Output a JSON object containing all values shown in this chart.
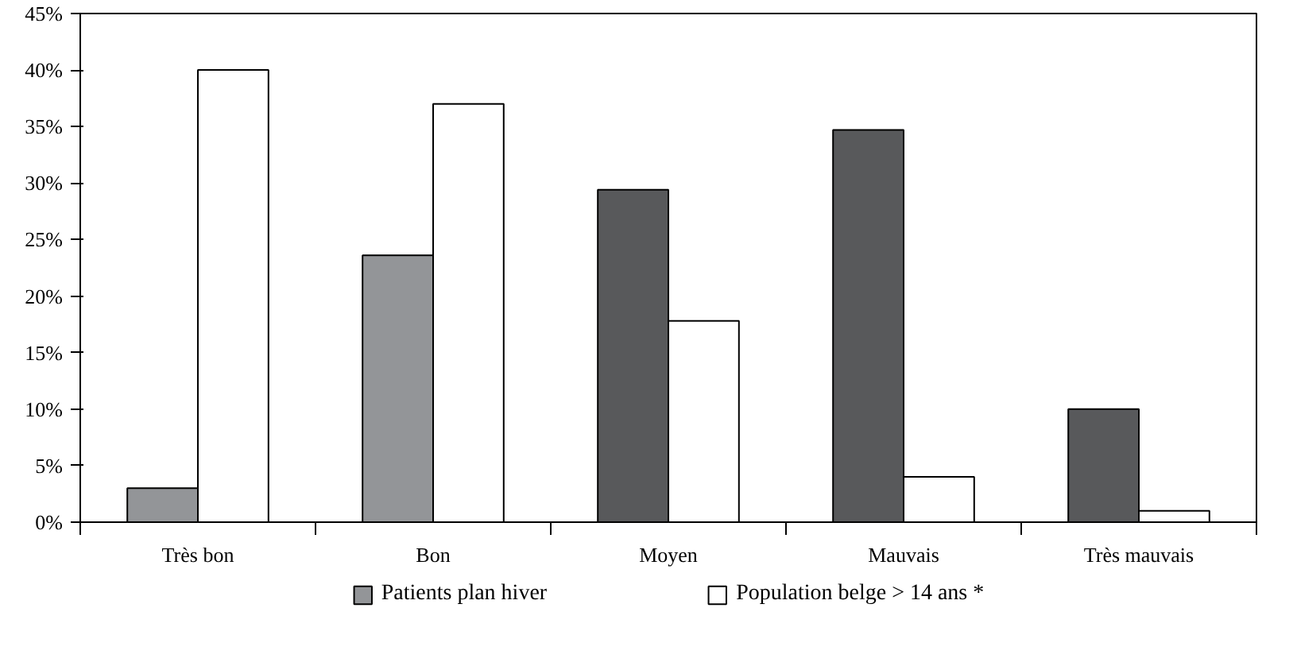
{
  "chart_data": {
    "type": "bar",
    "categories": [
      "Très bon",
      "Bon",
      "Moyen",
      "Mauvais",
      "Très mauvais"
    ],
    "series": [
      {
        "name": "Patients plan hiver",
        "color": "#939598",
        "colors": [
          "#939598",
          "#939598",
          "#58595b",
          "#58595b",
          "#58595b"
        ],
        "values": [
          3,
          23.6,
          29.4,
          34.7,
          10
        ]
      },
      {
        "name": "Population belge > 14 ans *",
        "color": "#ffffff",
        "values": [
          40,
          37,
          17.8,
          4,
          1
        ]
      }
    ],
    "ylim": [
      0,
      45
    ],
    "yticks": [
      {
        "value": 0,
        "label": "0%"
      },
      {
        "value": 5,
        "label": "5%"
      },
      {
        "value": 10,
        "label": "10%"
      },
      {
        "value": 15,
        "label": "15%"
      },
      {
        "value": 20,
        "label": "20%"
      },
      {
        "value": 25,
        "label": "25%"
      },
      {
        "value": 30,
        "label": "30%"
      },
      {
        "value": 35,
        "label": "35%"
      },
      {
        "value": 40,
        "label": "40%"
      },
      {
        "value": 45,
        "label": "45%"
      }
    ],
    "grid": false,
    "legend": "bottom"
  }
}
